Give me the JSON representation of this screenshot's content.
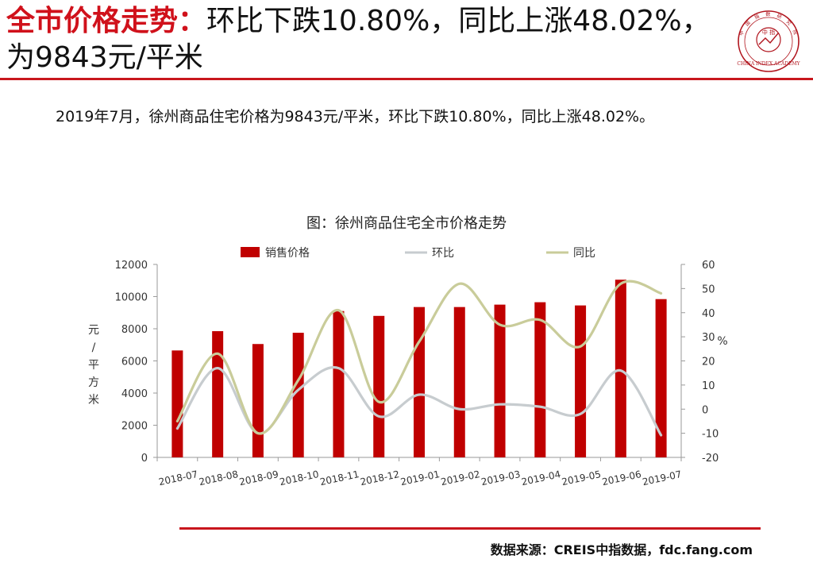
{
  "headline": {
    "red": "全市价格走势：",
    "rest": "环比下跌10.80%，同比上涨48.02%，为9843元/平米"
  },
  "logo": {
    "ring_text": "中国指数研究院",
    "center_text": "中 指",
    "english": "CHINA INDEX ACADEMY"
  },
  "summary": "2019年7月，徐州商品住宅价格为9843元/平米，环比下跌10.80%，同比上涨48.02%。",
  "source": "数据来源：CREIS中指数据，fdc.fang.com",
  "colors": {
    "bar": "#c00000",
    "mom": "#c7cccf",
    "yoy": "#c9cc9a",
    "accent": "#c8161d"
  },
  "chart_data": {
    "type": "bar",
    "title": "图：徐州商品住宅全市价格走势",
    "categories": [
      "2018-07",
      "2018-08",
      "2018-09",
      "2018-10",
      "2018-11",
      "2018-12",
      "2019-01",
      "2019-02",
      "2019-03",
      "2019-04",
      "2019-05",
      "2019-06",
      "2019-07"
    ],
    "ylabel_left": "元/平方米",
    "ylabel_right": "%",
    "ylim_left": [
      0,
      12000
    ],
    "ylim_right": [
      -20,
      60
    ],
    "yticks_left": [
      "0",
      "2000",
      "4000",
      "6000",
      "8000",
      "10000",
      "12000"
    ],
    "yticks_right": [
      "-20",
      "-10",
      "0",
      "10",
      "20",
      "30",
      "40",
      "50",
      "60"
    ],
    "legend_position": "top",
    "grid": false,
    "series": [
      {
        "name": "销售价格",
        "type": "bar",
        "axis": "left",
        "values": [
          6650,
          7850,
          7050,
          7750,
          9100,
          8800,
          9350,
          9350,
          9500,
          9650,
          9450,
          11050,
          9843
        ]
      },
      {
        "name": "环比",
        "type": "line",
        "axis": "right",
        "values": [
          -8,
          17,
          -10,
          8,
          17,
          -3,
          6,
          0,
          2,
          1,
          -2,
          16,
          -10.8
        ]
      },
      {
        "name": "同比",
        "type": "line",
        "axis": "right",
        "values": [
          -5,
          23,
          -10,
          12,
          41,
          3,
          28,
          52,
          35,
          37,
          26,
          52,
          48.02
        ]
      }
    ]
  }
}
